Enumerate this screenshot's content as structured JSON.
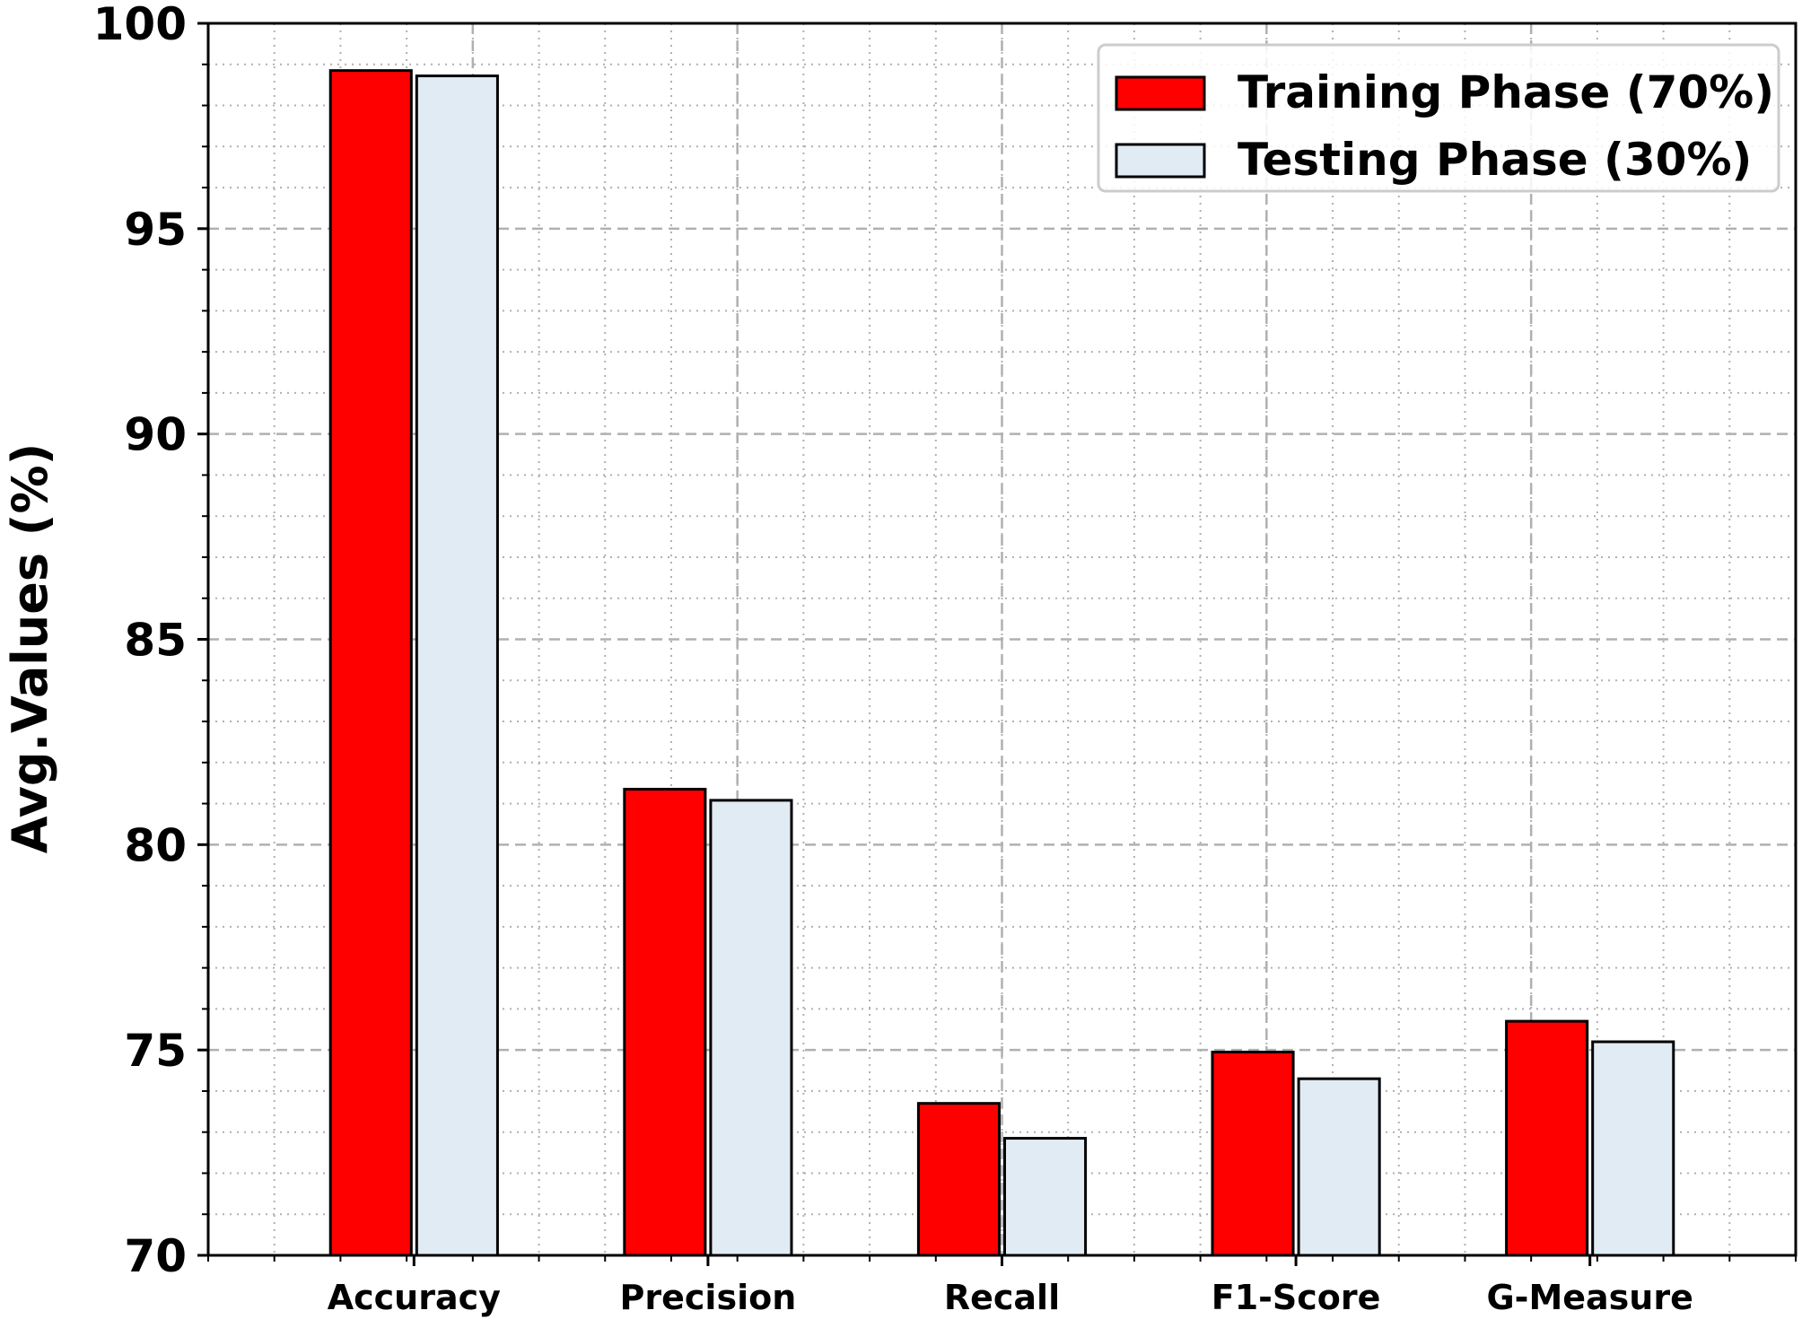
{
  "chart_data": {
    "type": "bar",
    "title": "",
    "xlabel": "",
    "ylabel": "Avg.Values (%)",
    "categories": [
      "Accuracy",
      "Precision",
      "Recall",
      "F1-Score",
      "G-Measure"
    ],
    "series": [
      {
        "name": "Training Phase (70%)",
        "values": [
          98.85,
          81.35,
          73.7,
          74.95,
          75.7
        ],
        "color": "#ff0000"
      },
      {
        "name": "Testing Phase (30%)",
        "values": [
          98.72,
          81.08,
          72.85,
          74.3,
          75.2
        ],
        "color": "#e1ebf4"
      }
    ],
    "ylim": [
      70,
      100
    ],
    "yticks": [
      "70",
      "75",
      "80",
      "85",
      "90",
      "95",
      "100"
    ],
    "grid": true,
    "legend_position": "top-right"
  }
}
